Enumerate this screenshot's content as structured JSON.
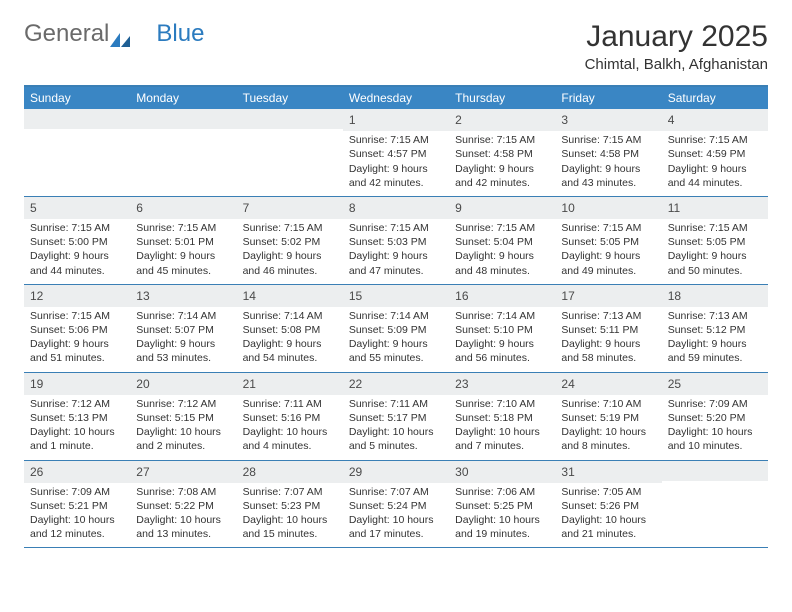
{
  "brand": {
    "general": "General",
    "blue": "Blue"
  },
  "title": "January 2025",
  "location": "Chimtal, Balkh, Afghanistan",
  "colors": {
    "header_bg": "#3a86c4",
    "border": "#3a7fb5",
    "daynum_bg": "#eceeef",
    "text": "#333333",
    "logo_gray": "#6a6a6a",
    "logo_blue": "#2b7bbf"
  },
  "weekdays": [
    "Sunday",
    "Monday",
    "Tuesday",
    "Wednesday",
    "Thursday",
    "Friday",
    "Saturday"
  ],
  "weeks": [
    [
      null,
      null,
      null,
      {
        "n": "1",
        "sunrise": "7:15 AM",
        "sunset": "4:57 PM",
        "day_h": 9,
        "day_m": 42
      },
      {
        "n": "2",
        "sunrise": "7:15 AM",
        "sunset": "4:58 PM",
        "day_h": 9,
        "day_m": 42
      },
      {
        "n": "3",
        "sunrise": "7:15 AM",
        "sunset": "4:58 PM",
        "day_h": 9,
        "day_m": 43
      },
      {
        "n": "4",
        "sunrise": "7:15 AM",
        "sunset": "4:59 PM",
        "day_h": 9,
        "day_m": 44
      }
    ],
    [
      {
        "n": "5",
        "sunrise": "7:15 AM",
        "sunset": "5:00 PM",
        "day_h": 9,
        "day_m": 44
      },
      {
        "n": "6",
        "sunrise": "7:15 AM",
        "sunset": "5:01 PM",
        "day_h": 9,
        "day_m": 45
      },
      {
        "n": "7",
        "sunrise": "7:15 AM",
        "sunset": "5:02 PM",
        "day_h": 9,
        "day_m": 46
      },
      {
        "n": "8",
        "sunrise": "7:15 AM",
        "sunset": "5:03 PM",
        "day_h": 9,
        "day_m": 47
      },
      {
        "n": "9",
        "sunrise": "7:15 AM",
        "sunset": "5:04 PM",
        "day_h": 9,
        "day_m": 48
      },
      {
        "n": "10",
        "sunrise": "7:15 AM",
        "sunset": "5:05 PM",
        "day_h": 9,
        "day_m": 49
      },
      {
        "n": "11",
        "sunrise": "7:15 AM",
        "sunset": "5:05 PM",
        "day_h": 9,
        "day_m": 50
      }
    ],
    [
      {
        "n": "12",
        "sunrise": "7:15 AM",
        "sunset": "5:06 PM",
        "day_h": 9,
        "day_m": 51
      },
      {
        "n": "13",
        "sunrise": "7:14 AM",
        "sunset": "5:07 PM",
        "day_h": 9,
        "day_m": 53
      },
      {
        "n": "14",
        "sunrise": "7:14 AM",
        "sunset": "5:08 PM",
        "day_h": 9,
        "day_m": 54
      },
      {
        "n": "15",
        "sunrise": "7:14 AM",
        "sunset": "5:09 PM",
        "day_h": 9,
        "day_m": 55
      },
      {
        "n": "16",
        "sunrise": "7:14 AM",
        "sunset": "5:10 PM",
        "day_h": 9,
        "day_m": 56
      },
      {
        "n": "17",
        "sunrise": "7:13 AM",
        "sunset": "5:11 PM",
        "day_h": 9,
        "day_m": 58
      },
      {
        "n": "18",
        "sunrise": "7:13 AM",
        "sunset": "5:12 PM",
        "day_h": 9,
        "day_m": 59
      }
    ],
    [
      {
        "n": "19",
        "sunrise": "7:12 AM",
        "sunset": "5:13 PM",
        "day_h": 10,
        "day_m": 1
      },
      {
        "n": "20",
        "sunrise": "7:12 AM",
        "sunset": "5:15 PM",
        "day_h": 10,
        "day_m": 2
      },
      {
        "n": "21",
        "sunrise": "7:11 AM",
        "sunset": "5:16 PM",
        "day_h": 10,
        "day_m": 4
      },
      {
        "n": "22",
        "sunrise": "7:11 AM",
        "sunset": "5:17 PM",
        "day_h": 10,
        "day_m": 5
      },
      {
        "n": "23",
        "sunrise": "7:10 AM",
        "sunset": "5:18 PM",
        "day_h": 10,
        "day_m": 7
      },
      {
        "n": "24",
        "sunrise": "7:10 AM",
        "sunset": "5:19 PM",
        "day_h": 10,
        "day_m": 8
      },
      {
        "n": "25",
        "sunrise": "7:09 AM",
        "sunset": "5:20 PM",
        "day_h": 10,
        "day_m": 10
      }
    ],
    [
      {
        "n": "26",
        "sunrise": "7:09 AM",
        "sunset": "5:21 PM",
        "day_h": 10,
        "day_m": 12
      },
      {
        "n": "27",
        "sunrise": "7:08 AM",
        "sunset": "5:22 PM",
        "day_h": 10,
        "day_m": 13
      },
      {
        "n": "28",
        "sunrise": "7:07 AM",
        "sunset": "5:23 PM",
        "day_h": 10,
        "day_m": 15
      },
      {
        "n": "29",
        "sunrise": "7:07 AM",
        "sunset": "5:24 PM",
        "day_h": 10,
        "day_m": 17
      },
      {
        "n": "30",
        "sunrise": "7:06 AM",
        "sunset": "5:25 PM",
        "day_h": 10,
        "day_m": 19
      },
      {
        "n": "31",
        "sunrise": "7:05 AM",
        "sunset": "5:26 PM",
        "day_h": 10,
        "day_m": 21
      },
      null
    ]
  ],
  "labels": {
    "sunrise": "Sunrise:",
    "sunset": "Sunset:",
    "daylight": "Daylight:",
    "hours": "hours",
    "and": "and",
    "minute": "minute.",
    "minutes": "minutes."
  }
}
